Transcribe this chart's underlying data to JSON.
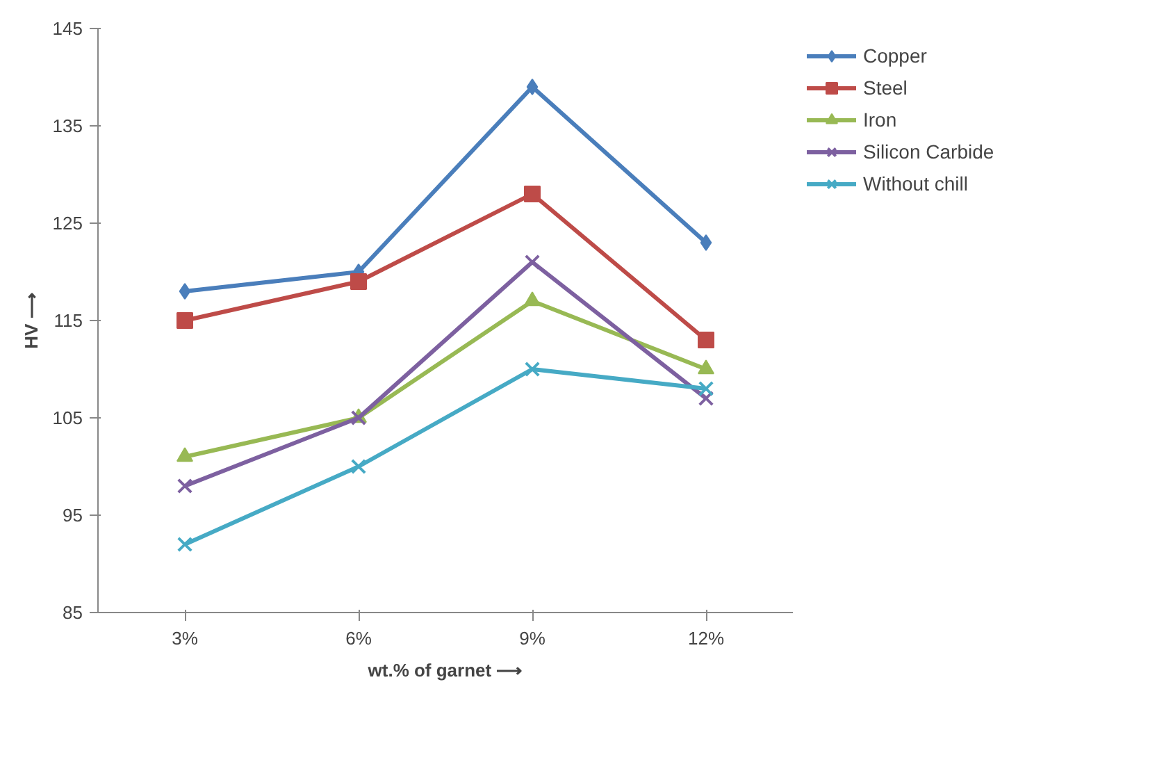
{
  "chart_data": {
    "type": "line",
    "xlabel": "wt.% of garnet ⟶",
    "ylabel": "HV ⟶",
    "categories": [
      "3%",
      "6%",
      "9%",
      "12%"
    ],
    "series": [
      {
        "name": "Copper",
        "color": "#4a7ebb",
        "marker": "diamond",
        "values": [
          118,
          120,
          139,
          123
        ]
      },
      {
        "name": "Steel",
        "color": "#be4b48",
        "marker": "square",
        "values": [
          115,
          119,
          128,
          113
        ]
      },
      {
        "name": "Iron",
        "color": "#98b954",
        "marker": "triangle",
        "values": [
          101,
          105,
          117,
          110
        ]
      },
      {
        "name": "Silicon Carbide",
        "color": "#7d60a0",
        "marker": "cross",
        "values": [
          98,
          105,
          121,
          107
        ]
      },
      {
        "name": "Without chill",
        "color": "#46aac5",
        "marker": "cross",
        "values": [
          92,
          100,
          110,
          108
        ]
      }
    ],
    "ylim": [
      85,
      145
    ],
    "yticks": [
      85,
      95,
      105,
      115,
      125,
      135,
      145
    ],
    "grid": false,
    "legend": "right",
    "line_style": "solid"
  }
}
